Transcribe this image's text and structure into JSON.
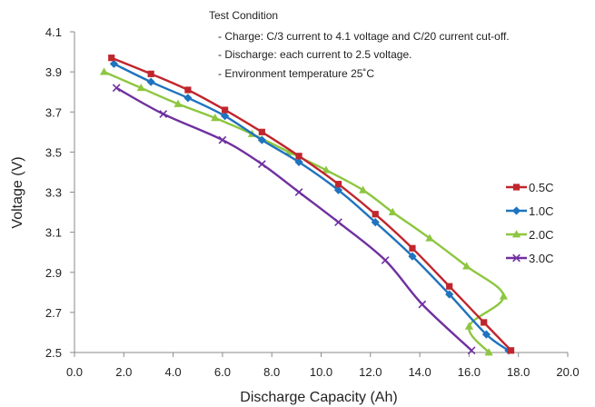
{
  "chart_data": {
    "type": "line",
    "xlabel": "Discharge Capacity (Ah)",
    "ylabel": "Voltage (V)",
    "xlim": [
      0,
      20
    ],
    "ylim": [
      2.5,
      4.1
    ],
    "x_ticks": [
      "0.0",
      "2.0",
      "4.0",
      "6.0",
      "8.0",
      "10.0",
      "12.0",
      "14.0",
      "16.0",
      "18.0",
      "20.0"
    ],
    "y_ticks": [
      "2.5",
      "2.7",
      "2.9",
      "3.1",
      "3.3",
      "3.5",
      "3.7",
      "3.9",
      "4.1"
    ],
    "grid": false,
    "legend_position": "right",
    "annotation": {
      "title": "Test Condition",
      "lines": [
        "- Charge: C/3 current to 4.1 voltage and C/20 current cut-off.",
        "- Discharge: each current to 2.5 voltage.",
        "- Environment temperature 25˚C"
      ]
    },
    "series": [
      {
        "name": "0.5C",
        "color": "#c0262d",
        "marker": "square",
        "points": [
          [
            1.5,
            3.97
          ],
          [
            3.1,
            3.89
          ],
          [
            4.6,
            3.81
          ],
          [
            6.1,
            3.71
          ],
          [
            7.6,
            3.6
          ],
          [
            9.1,
            3.48
          ],
          [
            10.7,
            3.34
          ],
          [
            12.2,
            3.19
          ],
          [
            13.7,
            3.02
          ],
          [
            15.2,
            2.83
          ],
          [
            16.6,
            2.65
          ],
          [
            17.7,
            2.51
          ]
        ]
      },
      {
        "name": "1.0C",
        "color": "#1f73bf",
        "marker": "diamond",
        "points": [
          [
            1.6,
            3.94
          ],
          [
            3.1,
            3.85
          ],
          [
            4.6,
            3.77
          ],
          [
            6.1,
            3.68
          ],
          [
            7.6,
            3.56
          ],
          [
            9.1,
            3.45
          ],
          [
            10.7,
            3.31
          ],
          [
            12.2,
            3.15
          ],
          [
            13.7,
            2.98
          ],
          [
            15.2,
            2.79
          ],
          [
            16.7,
            2.59
          ],
          [
            17.6,
            2.51
          ]
        ]
      },
      {
        "name": "2.0C",
        "color": "#8dc63f",
        "marker": "triangle",
        "points": [
          [
            1.2,
            3.9
          ],
          [
            2.7,
            3.82
          ],
          [
            4.2,
            3.74
          ],
          [
            5.7,
            3.67
          ],
          [
            7.2,
            3.59
          ],
          [
            8.7,
            3.5
          ],
          [
            10.2,
            3.41
          ],
          [
            11.7,
            3.31
          ],
          [
            12.9,
            3.2
          ],
          [
            14.4,
            3.07
          ],
          [
            15.9,
            2.93
          ],
          [
            17.4,
            2.78
          ],
          [
            16.0,
            2.63
          ],
          [
            16.8,
            2.5
          ]
        ]
      },
      {
        "name": "3.0C",
        "color": "#7030a0",
        "marker": "x",
        "points": [
          [
            1.7,
            3.82
          ],
          [
            3.6,
            3.69
          ],
          [
            6.0,
            3.56
          ],
          [
            7.6,
            3.44
          ],
          [
            9.1,
            3.3
          ],
          [
            10.7,
            3.15
          ],
          [
            12.6,
            2.96
          ],
          [
            14.1,
            2.74
          ],
          [
            16.1,
            2.51
          ]
        ]
      }
    ]
  }
}
